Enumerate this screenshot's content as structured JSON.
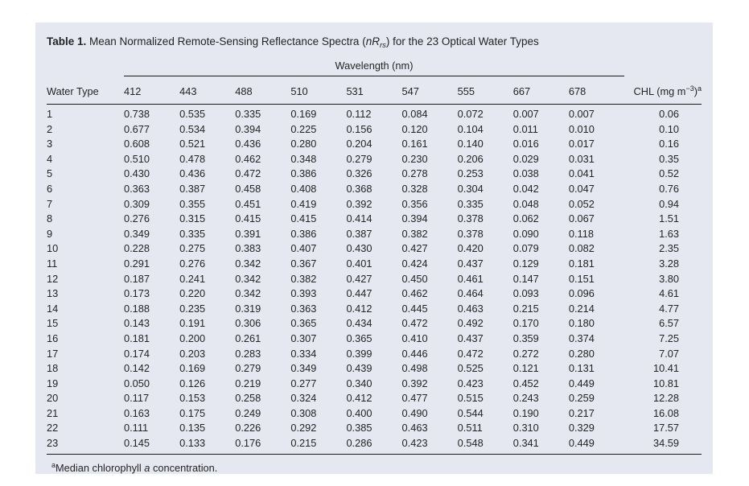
{
  "page": {
    "background_color": "#ffffff",
    "panel_background_color": "#e6e8f1",
    "rule_color": "#1a1a1a",
    "text_color": "#242424"
  },
  "table": {
    "label": "Table 1.",
    "title_pre": " Mean Normalized Remote-Sensing Reflectance Spectra (",
    "title_math_main": "nR",
    "title_math_sub": "rs",
    "title_post": ") for the 23 Optical Water Types",
    "group_header": "Wavelength (nm)",
    "row_axis_header": "Water Type",
    "wavelengths": [
      "412",
      "443",
      "488",
      "510",
      "531",
      "547",
      "555",
      "667",
      "678"
    ],
    "chl_header": {
      "pre": "CHL (mg m",
      "exp": "−3",
      "post": ")",
      "note": "a"
    },
    "rows": [
      [
        "1",
        "0.738",
        "0.535",
        "0.335",
        "0.169",
        "0.112",
        "0.084",
        "0.072",
        "0.007",
        "0.007",
        "0.06"
      ],
      [
        "2",
        "0.677",
        "0.534",
        "0.394",
        "0.225",
        "0.156",
        "0.120",
        "0.104",
        "0.011",
        "0.010",
        "0.10"
      ],
      [
        "3",
        "0.608",
        "0.521",
        "0.436",
        "0.280",
        "0.204",
        "0.161",
        "0.140",
        "0.016",
        "0.017",
        "0.16"
      ],
      [
        "4",
        "0.510",
        "0.478",
        "0.462",
        "0.348",
        "0.279",
        "0.230",
        "0.206",
        "0.029",
        "0.031",
        "0.35"
      ],
      [
        "5",
        "0.430",
        "0.436",
        "0.472",
        "0.386",
        "0.326",
        "0.278",
        "0.253",
        "0.038",
        "0.041",
        "0.52"
      ],
      [
        "6",
        "0.363",
        "0.387",
        "0.458",
        "0.408",
        "0.368",
        "0.328",
        "0.304",
        "0.042",
        "0.047",
        "0.76"
      ],
      [
        "7",
        "0.309",
        "0.355",
        "0.451",
        "0.419",
        "0.392",
        "0.356",
        "0.335",
        "0.048",
        "0.052",
        "0.94"
      ],
      [
        "8",
        "0.276",
        "0.315",
        "0.415",
        "0.415",
        "0.414",
        "0.394",
        "0.378",
        "0.062",
        "0.067",
        "1.51"
      ],
      [
        "9",
        "0.349",
        "0.335",
        "0.391",
        "0.386",
        "0.387",
        "0.382",
        "0.378",
        "0.090",
        "0.118",
        "1.63"
      ],
      [
        "10",
        "0.228",
        "0.275",
        "0.383",
        "0.407",
        "0.430",
        "0.427",
        "0.420",
        "0.079",
        "0.082",
        "2.35"
      ],
      [
        "11",
        "0.291",
        "0.276",
        "0.342",
        "0.367",
        "0.401",
        "0.424",
        "0.437",
        "0.129",
        "0.181",
        "3.28"
      ],
      [
        "12",
        "0.187",
        "0.241",
        "0.342",
        "0.382",
        "0.427",
        "0.450",
        "0.461",
        "0.147",
        "0.151",
        "3.80"
      ],
      [
        "13",
        "0.173",
        "0.220",
        "0.342",
        "0.393",
        "0.447",
        "0.462",
        "0.464",
        "0.093",
        "0.096",
        "4.61"
      ],
      [
        "14",
        "0.188",
        "0.235",
        "0.319",
        "0.363",
        "0.412",
        "0.445",
        "0.463",
        "0.215",
        "0.214",
        "4.77"
      ],
      [
        "15",
        "0.143",
        "0.191",
        "0.306",
        "0.365",
        "0.434",
        "0.472",
        "0.492",
        "0.170",
        "0.180",
        "6.57"
      ],
      [
        "16",
        "0.181",
        "0.200",
        "0.261",
        "0.307",
        "0.365",
        "0.410",
        "0.437",
        "0.359",
        "0.374",
        "7.25"
      ],
      [
        "17",
        "0.174",
        "0.203",
        "0.283",
        "0.334",
        "0.399",
        "0.446",
        "0.472",
        "0.272",
        "0.280",
        "7.07"
      ],
      [
        "18",
        "0.142",
        "0.169",
        "0.279",
        "0.349",
        "0.439",
        "0.498",
        "0.525",
        "0.121",
        "0.131",
        "10.41"
      ],
      [
        "19",
        "0.050",
        "0.126",
        "0.219",
        "0.277",
        "0.340",
        "0.392",
        "0.423",
        "0.452",
        "0.449",
        "10.81"
      ],
      [
        "20",
        "0.117",
        "0.153",
        "0.258",
        "0.324",
        "0.412",
        "0.477",
        "0.515",
        "0.243",
        "0.259",
        "12.28"
      ],
      [
        "21",
        "0.163",
        "0.175",
        "0.249",
        "0.308",
        "0.400",
        "0.490",
        "0.544",
        "0.190",
        "0.217",
        "16.08"
      ],
      [
        "22",
        "0.111",
        "0.135",
        "0.226",
        "0.292",
        "0.385",
        "0.463",
        "0.511",
        "0.310",
        "0.329",
        "17.57"
      ],
      [
        "23",
        "0.145",
        "0.133",
        "0.176",
        "0.215",
        "0.286",
        "0.423",
        "0.548",
        "0.341",
        "0.449",
        "34.59"
      ]
    ],
    "footnote": {
      "mark": "a",
      "pre": "Median chlorophyll ",
      "italic": "a",
      "post": " concentration."
    }
  }
}
